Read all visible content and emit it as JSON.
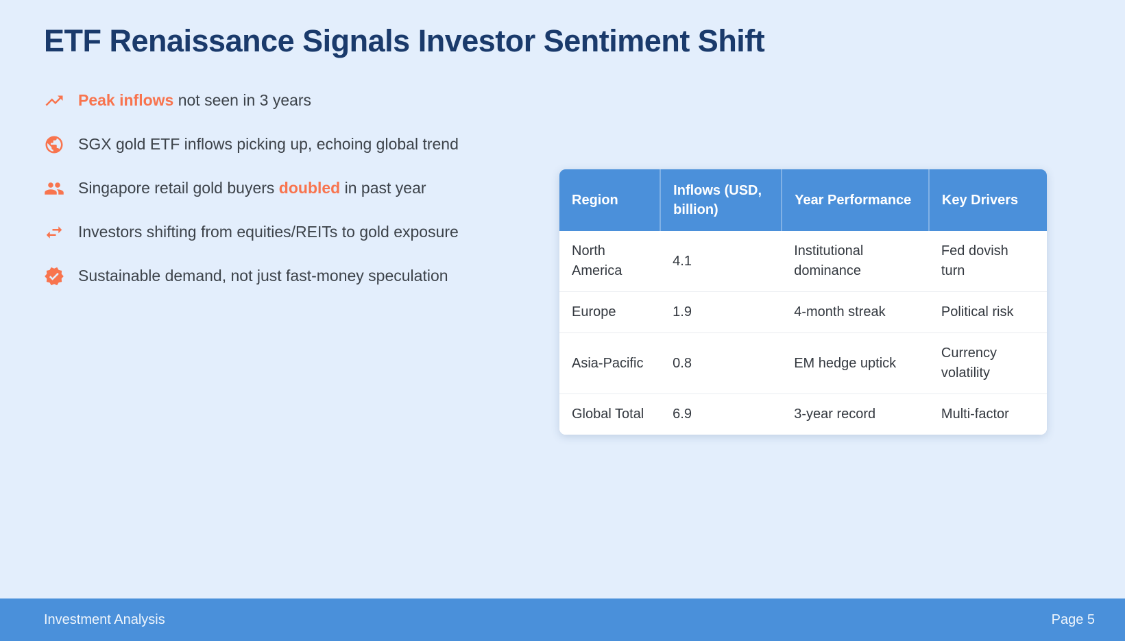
{
  "slide": {
    "title": "ETF Renaissance Signals Investor Sentiment Shift"
  },
  "colors": {
    "background": "#e3eefc",
    "title_navy": "#1a3a6b",
    "accent_orange": "#f8744e",
    "table_header_blue": "#4b90da",
    "footer_blue": "#4a90da",
    "body_text": "#3c4249"
  },
  "bullets": [
    {
      "icon": "trending-up-icon",
      "segments": [
        {
          "text": "Peak inflows",
          "highlight": true
        },
        {
          "text": " not seen in 3 years",
          "highlight": false
        }
      ]
    },
    {
      "icon": "globe-icon",
      "segments": [
        {
          "text": "SGX gold ETF inflows picking up, echoing global trend",
          "highlight": false
        }
      ]
    },
    {
      "icon": "people-icon",
      "segments": [
        {
          "text": "Singapore retail gold buyers ",
          "highlight": false
        },
        {
          "text": "doubled",
          "highlight": true
        },
        {
          "text": " in past year",
          "highlight": false
        }
      ]
    },
    {
      "icon": "swap-arrows-icon",
      "segments": [
        {
          "text": "Investors shifting from equities/REITs to gold exposure",
          "highlight": false
        }
      ]
    },
    {
      "icon": "verified-badge-icon",
      "segments": [
        {
          "text": "Sustainable demand, not just fast-money speculation",
          "highlight": false
        }
      ]
    }
  ],
  "table": {
    "headers": [
      "Region",
      "Inflows (USD, billion)",
      "Year Performance",
      "Key Drivers"
    ],
    "col_widths": [
      "20.7%",
      "24.9%",
      "30.2%",
      "24.2%"
    ],
    "rows": [
      [
        "North America",
        "4.1",
        "Institutional dominance",
        "Fed dovish turn"
      ],
      [
        "Europe",
        "1.9",
        "4-month streak",
        "Political risk"
      ],
      [
        "Asia-Pacific",
        "0.8",
        "EM hedge uptick",
        "Currency volatility"
      ],
      [
        "Global Total",
        "6.9",
        "3-year record",
        "Multi-factor"
      ]
    ]
  },
  "footer": {
    "left": "Investment Analysis",
    "right": "Page 5"
  }
}
